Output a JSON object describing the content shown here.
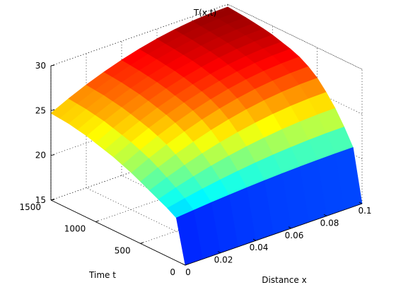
{
  "chart_data": {
    "type": "surface",
    "title": "T(x,t)",
    "xlabel": "Distance x",
    "ylabel": "Time t",
    "zlabel": "",
    "x_range": [
      0,
      0.1
    ],
    "t_range": [
      0,
      1500
    ],
    "z_range": [
      15,
      30
    ],
    "x_ticks": [
      "0",
      "0.02",
      "0.04",
      "0.06",
      "0.08",
      "0.1"
    ],
    "t_ticks": [
      "0",
      "500",
      "1000",
      "1500"
    ],
    "z_ticks": [
      "15",
      "20",
      "25",
      "30"
    ],
    "grid": true,
    "colormap": "jet",
    "x": [
      0,
      0.01,
      0.02,
      0.03,
      0.04,
      0.05,
      0.06,
      0.07,
      0.08,
      0.09,
      0.1
    ],
    "t": [
      0,
      100,
      200,
      300,
      400,
      500,
      600,
      700,
      800,
      900,
      1000,
      1100,
      1200,
      1300,
      1400,
      1500
    ],
    "T_at_x0": [
      15,
      19.8,
      20.4,
      20.9,
      21.4,
      21.9,
      22.4,
      22.8,
      23.2,
      23.5,
      23.8,
      24.1,
      24.3,
      24.5,
      24.6,
      24.7
    ],
    "T_at_x_end": [
      15,
      20.8,
      22.6,
      24.2,
      25.5,
      26.6,
      27.4,
      28.0,
      28.4,
      28.7,
      29.0,
      29.2,
      29.35,
      29.5,
      29.6,
      29.7
    ]
  }
}
